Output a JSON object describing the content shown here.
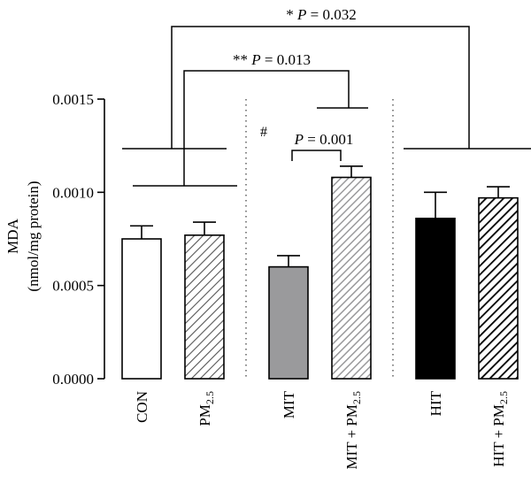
{
  "chart_data": {
    "type": "bar",
    "ylabel_line1": "MDA",
    "ylabel_line2": "(nmol/mg protein)",
    "ylim": [
      0,
      0.0015
    ],
    "yticks": [
      "0.0000",
      "0.0005",
      "0.0010",
      "0.0015"
    ],
    "ytick_values": [
      0,
      0.0005,
      0.001,
      0.0015
    ],
    "categories": [
      {
        "label": "CON",
        "sub": "",
        "value": 0.00075,
        "error": 7e-05,
        "fill": "white"
      },
      {
        "label": "PM",
        "sub": "2.5",
        "value": 0.00077,
        "error": 7e-05,
        "fill": "hatch-gray"
      },
      {
        "label": "MIT",
        "sub": "",
        "value": 0.0006,
        "error": 6e-05,
        "fill": "gray"
      },
      {
        "label": "MIT + PM",
        "sub": "2.5",
        "value": 0.00108,
        "error": 6e-05,
        "fill": "hatch-light"
      },
      {
        "label": "HIT",
        "sub": "",
        "value": 0.00086,
        "error": 0.00014,
        "fill": "black"
      },
      {
        "label": "HIT + PM",
        "sub": "2.5",
        "value": 0.00097,
        "error": 6e-05,
        "fill": "hatch-black"
      }
    ],
    "annotations": {
      "top_bracket": {
        "stars": "*",
        "p_label": "P",
        "p_value": "= 0.032"
      },
      "second_bracket": {
        "stars": "**",
        "p_label": "P",
        "p_value": "= 0.013"
      },
      "inner_bracket": {
        "p_label": "P",
        "p_value": "= 0.001"
      },
      "hash": "#"
    },
    "grid": false,
    "colors": {
      "gray_bar": "#9a9a9c",
      "black_bar": "#000000",
      "hatch": "#555555"
    }
  }
}
